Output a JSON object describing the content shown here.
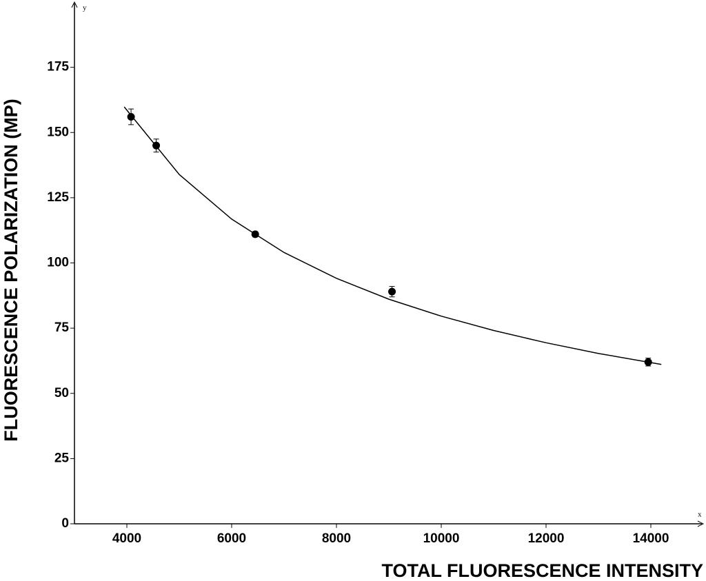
{
  "chart_data": {
    "type": "scatter",
    "x_label": "TOTAL FLUORESCENCE INTENSITY",
    "y_label": "FLUORESCENCE POLARIZATION  (MP)",
    "x_axis_name": "x",
    "y_axis_name": "y",
    "x": [
      4080,
      4560,
      6450,
      9060,
      13950
    ],
    "values": [
      156,
      145,
      111,
      89,
      62
    ],
    "errors": [
      3,
      2.5,
      1,
      2,
      1.5
    ],
    "color": "#000000",
    "fit": {
      "x": [
        3950,
        5000,
        6000,
        7000,
        8000,
        9000,
        10000,
        11000,
        12000,
        13000,
        14000,
        14200
      ],
      "values": [
        159.8,
        133.9,
        116.8,
        104.0,
        94.1,
        86.1,
        79.6,
        74.1,
        69.4,
        65.3,
        61.8,
        61.1
      ]
    },
    "xlim": [
      3000,
      15000
    ],
    "ylim": [
      0,
      200
    ],
    "xticks": [
      4000,
      6000,
      8000,
      10000,
      12000,
      14000
    ],
    "yticks": [
      0,
      25,
      50,
      75,
      100,
      125,
      150,
      175
    ]
  }
}
